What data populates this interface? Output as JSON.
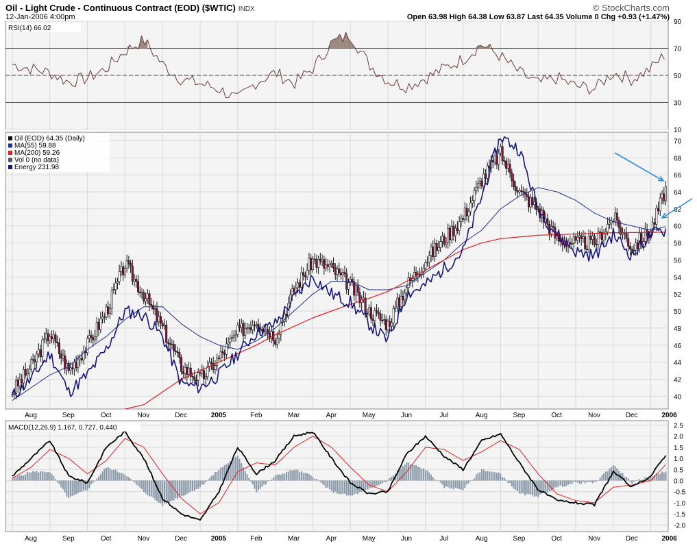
{
  "header": {
    "title": "Oil - Light Crude - Continuous Contract (EOD) ($WTIC)",
    "exchange": "INDX",
    "date": "12-Jan-2006 4:00pm",
    "brand": "© StockCharts.com",
    "quote": "Open 63.98 High 64.38 Low 63.87 Last 64.35 Volume 0 Chg +0.93 (+1.47%)"
  },
  "colors": {
    "panel_bg": "#f4f4f4",
    "grid": "#d8d8d8",
    "rsi_line": "#6b3a3a",
    "rsi_fill": "#9b8a80",
    "ma55": "#1f2f8f",
    "ma200": "#e02020",
    "energy": "#14147a",
    "candle": "#111111",
    "candle_down": "#8b1040",
    "macd": "#000000",
    "signal": "#e02020",
    "histogram": "#8898a8",
    "arrow": "#2b8be0"
  },
  "x_axis": {
    "months": [
      "Aug",
      "Sep",
      "Oct",
      "Nov",
      "Dec",
      "2005",
      "Feb",
      "Mar",
      "Apr",
      "May",
      "Jun",
      "Jul",
      "Aug",
      "Sep",
      "Oct",
      "Nov",
      "Dec",
      "2006"
    ],
    "bold": [
      "2005",
      "2006"
    ]
  },
  "chart_data": [
    {
      "type": "line",
      "panel": "RSI",
      "title": "RSI(14) 66.02",
      "ylim": [
        10,
        90
      ],
      "yticks": [
        10,
        30,
        50,
        70,
        90
      ],
      "reference_lines": [
        30,
        50,
        70
      ],
      "x_months": [
        0,
        0.5,
        1,
        1.5,
        2,
        2.5,
        3,
        3.5,
        4,
        4.5,
        5,
        5.5,
        6,
        6.5,
        7,
        7.5,
        8,
        8.5,
        9,
        9.5,
        10,
        10.5,
        11,
        11.5,
        12,
        12.5,
        13,
        13.5,
        14,
        14.5,
        15,
        15.5,
        16,
        16.5,
        17,
        17.4
      ],
      "values": [
        58,
        55,
        52,
        45,
        48,
        55,
        68,
        76,
        58,
        47,
        44,
        40,
        32,
        45,
        52,
        44,
        55,
        74,
        80,
        58,
        46,
        42,
        48,
        55,
        62,
        73,
        64,
        52,
        44,
        48,
        42,
        40,
        52,
        47,
        55,
        66
      ]
    },
    {
      "type": "candlestick",
      "panel": "Price",
      "title": "Oil (EOD) 64.35 (Daily)",
      "legend": [
        "Oil (EOD) 64.35 (Daily)",
        "MA(55) 59.88",
        "MA(200) 59.26",
        "Vol 0 (no data)",
        "Energy 231.98"
      ],
      "ylim": [
        38.5,
        71
      ],
      "yticks": [
        40,
        42,
        44,
        46,
        48,
        50,
        52,
        54,
        56,
        58,
        60,
        62,
        64,
        66,
        68,
        70
      ],
      "x_months": [
        0,
        0.5,
        1,
        1.5,
        2,
        2.5,
        3,
        3.5,
        4,
        4.5,
        5,
        5.5,
        6,
        6.5,
        7,
        7.5,
        8,
        8.5,
        9,
        9.5,
        10,
        10.5,
        11,
        11.5,
        12,
        12.5,
        13,
        13.5,
        14,
        14.5,
        15,
        15.5,
        16,
        16.5,
        17,
        17.4
      ],
      "close": [
        40.5,
        43.5,
        47.5,
        43.0,
        46.0,
        50.0,
        55.5,
        52.0,
        48.0,
        43.5,
        42.0,
        44.5,
        47.5,
        49.0,
        47.0,
        52.5,
        56.0,
        55.0,
        53.0,
        50.0,
        48.5,
        53.0,
        56.0,
        58.5,
        61.0,
        65.5,
        68.5,
        64.0,
        62.0,
        58.5,
        58.0,
        58.0,
        61.0,
        57.5,
        59.5,
        64.35
      ],
      "ma55": [
        39.5,
        41.0,
        42.5,
        43.5,
        45.5,
        47.0,
        49.0,
        50.5,
        50.5,
        48.5,
        47.0,
        46.0,
        45.5,
        46.5,
        48.0,
        50.0,
        52.0,
        53.5,
        53.5,
        52.5,
        52.5,
        53.0,
        54.5,
        56.0,
        58.0,
        59.5,
        62.0,
        63.5,
        64.5,
        64.0,
        63.0,
        61.5,
        60.5,
        60.0,
        59.5,
        59.9
      ],
      "ma200": [
        null,
        null,
        null,
        null,
        null,
        null,
        null,
        39.0,
        40.5,
        42.0,
        43.0,
        44.0,
        45.0,
        46.0,
        47.2,
        48.2,
        49.2,
        50.0,
        50.8,
        51.5,
        52.3,
        53.5,
        54.8,
        56.0,
        57.2,
        58.0,
        58.5,
        58.9,
        59.2,
        59.26
      ],
      "ma200_x": [
        0,
        0.5,
        1,
        1.5,
        2,
        2.5,
        3,
        3.5,
        4,
        4.5,
        5,
        5.5,
        6,
        6.5,
        7,
        7.5,
        8,
        8.5,
        9,
        9.5,
        10,
        10.5,
        11,
        11.5,
        12,
        12.5,
        13,
        14,
        16,
        17.4
      ],
      "energy_norm": [
        40.0,
        42.0,
        45.0,
        40.5,
        42.5,
        45.5,
        50.0,
        49.5,
        47.0,
        41.5,
        41.0,
        42.5,
        45.0,
        47.5,
        48.5,
        51.5,
        54.0,
        52.0,
        51.0,
        48.5,
        46.5,
        52.0,
        53.0,
        55.0,
        57.0,
        63.5,
        70.5,
        69.0,
        62.0,
        59.0,
        57.0,
        56.5,
        59.0,
        56.5,
        59.0,
        59.5
      ],
      "annotations": [
        "arrow at last price",
        "arrow at moving averages"
      ]
    },
    {
      "type": "line",
      "panel": "MACD",
      "title": "MACD(12,26,9) 1.167, 0.727, 0.440",
      "ylim": [
        -2.3,
        2.7
      ],
      "yticks": [
        -2.0,
        -1.5,
        -1.0,
        -0.5,
        0.0,
        0.5,
        1.0,
        1.5,
        2.0,
        2.5
      ],
      "x_months": [
        0,
        0.5,
        1,
        1.5,
        2,
        2.5,
        3,
        3.5,
        4,
        4.5,
        5,
        5.5,
        6,
        6.5,
        7,
        7.5,
        8,
        8.5,
        9,
        9.5,
        10,
        10.5,
        11,
        11.5,
        12,
        12.5,
        13,
        13.5,
        14,
        14.5,
        15,
        15.5,
        16,
        16.5,
        17,
        17.4
      ],
      "macd": [
        0.2,
        1.0,
        1.8,
        0.2,
        -0.1,
        1.5,
        2.2,
        1.0,
        -0.8,
        -1.5,
        -1.8,
        -0.5,
        1.5,
        0.3,
        0.9,
        2.0,
        2.2,
        1.0,
        -0.1,
        -0.6,
        -0.5,
        1.2,
        2.0,
        1.1,
        0.5,
        1.8,
        2.1,
        0.8,
        -0.4,
        -0.9,
        -1.0,
        -1.1,
        0.4,
        -0.3,
        0.2,
        1.167
      ],
      "signal": [
        0.1,
        0.6,
        1.4,
        1.0,
        0.3,
        0.9,
        1.9,
        1.5,
        0.3,
        -0.8,
        -1.5,
        -1.0,
        0.4,
        0.8,
        0.7,
        1.5,
        2.0,
        1.5,
        0.6,
        -0.2,
        -0.5,
        0.4,
        1.5,
        1.4,
        0.9,
        1.3,
        1.8,
        1.4,
        0.3,
        -0.6,
        -0.9,
        -1.0,
        -0.3,
        -0.2,
        0.0,
        0.727
      ],
      "histogram": [
        0.1,
        0.4,
        0.4,
        -0.8,
        -0.4,
        0.6,
        0.3,
        -0.5,
        -1.1,
        -0.7,
        -0.3,
        0.5,
        1.1,
        -0.5,
        0.2,
        0.5,
        0.2,
        -0.5,
        -0.7,
        -0.4,
        0.0,
        0.8,
        0.5,
        -0.3,
        -0.4,
        0.5,
        0.3,
        -0.6,
        -0.7,
        -0.3,
        -0.1,
        -0.1,
        0.7,
        -0.1,
        0.2,
        0.44
      ]
    }
  ]
}
